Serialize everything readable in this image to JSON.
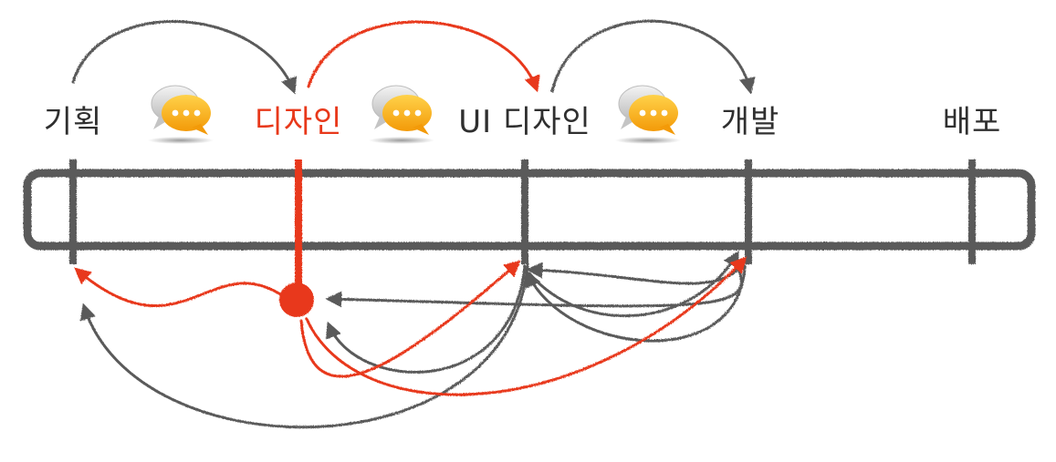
{
  "stages": [
    {
      "id": "plan",
      "label": "기획",
      "active": false
    },
    {
      "id": "design",
      "label": "디자인",
      "active": true
    },
    {
      "id": "ui-design",
      "label": "UI 디자인",
      "active": false
    },
    {
      "id": "dev",
      "label": "개발",
      "active": false
    },
    {
      "id": "deploy",
      "label": "배포",
      "active": false
    }
  ],
  "communication_icons": [
    "chat-bubbles-icon",
    "chat-bubbles-icon",
    "chat-bubbles-icon"
  ],
  "colors": {
    "line": "#5a5a5a",
    "accent": "#e8381a",
    "bubble_orange": "#f7a90f"
  }
}
